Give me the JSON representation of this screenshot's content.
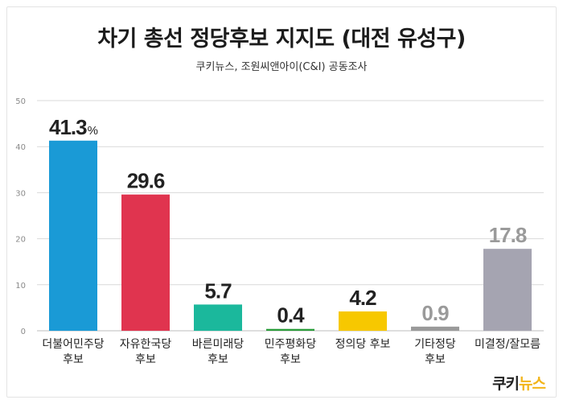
{
  "title": "차기 총선 정당후보 지지도 (대전 유성구)",
  "subtitle": "쿠키뉴스, 조원씨앤아이(C&I) 공동조사",
  "logo": {
    "part1": "쿠키",
    "part2": "뉴스"
  },
  "chart_data": {
    "type": "bar",
    "categories": [
      [
        "더불어민주당",
        "후보"
      ],
      [
        "자유한국당",
        "후보"
      ],
      [
        "바른미래당",
        "후보"
      ],
      [
        "민주평화당",
        "후보"
      ],
      [
        "정의당 후보"
      ],
      [
        "기타정당",
        "후보"
      ],
      [
        "미결정/잘모름"
      ]
    ],
    "values": [
      41.3,
      29.6,
      5.7,
      0.4,
      4.2,
      0.9,
      17.8
    ],
    "value_labels": [
      "41.3",
      "29.6",
      "5.7",
      "0.4",
      "4.2",
      "0.9",
      "17.8"
    ],
    "first_label_suffix": "%",
    "colors": [
      "#1a9ad6",
      "#e0344f",
      "#1bb89c",
      "#2a9d3a",
      "#f7c800",
      "#9a9a9a",
      "#a5a4b1"
    ],
    "label_colors": [
      "#222222",
      "#222222",
      "#222222",
      "#222222",
      "#222222",
      "#9a9a9a",
      "#9a9a9a"
    ],
    "ylim": [
      0,
      50
    ],
    "yticks": [
      0,
      10,
      20,
      30,
      40,
      50
    ],
    "grid": true,
    "grid_color": "#d9d9d9"
  }
}
